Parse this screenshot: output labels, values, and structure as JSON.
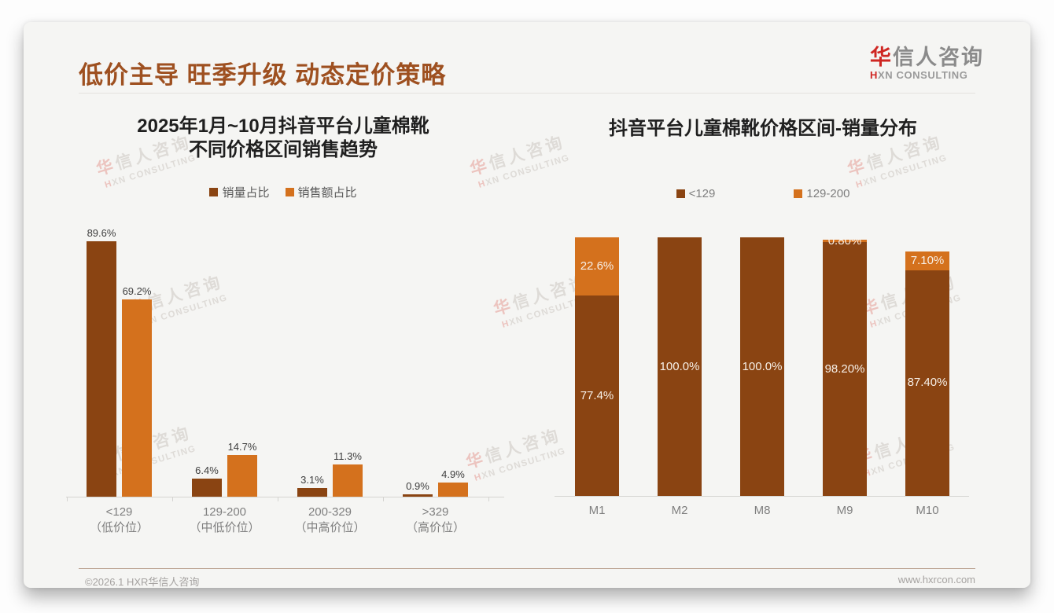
{
  "slide": {
    "title": "低价主导 旺季升级 动态定价策略",
    "logo": {
      "cn": "华信人咨询",
      "en": "HXN CONSULTING"
    },
    "footer": {
      "copyright": "©2026.1 HXR华信人咨询",
      "website": "www.hxrcon.com"
    },
    "watermark": {
      "line1": "华信人咨询",
      "line2": "HXN CONSULTING"
    }
  },
  "colors": {
    "series_brown": "#8a4412",
    "series_orange": "#d4711d",
    "title_brown": "#9e5020",
    "logo_red": "#cf2723",
    "watermark_pink": "#ecc4bf",
    "watermark_gray": "#dedbd7",
    "inside_label": "#f7f0e8",
    "outside_label": "#3d3d3d"
  },
  "chart_data": [
    {
      "type": "bar",
      "variant": "grouped",
      "title": "2025年1月~10月抖音平台儿童棉靴 不同价格区间销售趋势",
      "title_lines": [
        "2025年1月~10月抖音平台儿童棉靴",
        "不同价格区间销售趋势"
      ],
      "categories": [
        "<129（低价位）",
        "129-200（中低价位）",
        "200-329（中高价位）",
        ">329（高价位）"
      ],
      "category_lines": [
        [
          "<129",
          "（低价位）"
        ],
        [
          "129-200",
          "（中低价位）"
        ],
        [
          "200-329",
          "（中高价位）"
        ],
        [
          ">329",
          "（高价位）"
        ]
      ],
      "series": [
        {
          "name": "销量占比",
          "color": "series_brown",
          "values": [
            89.6,
            6.4,
            3.1,
            0.9
          ],
          "labels": [
            "89.6%",
            "6.4%",
            "3.1%",
            "0.9%"
          ]
        },
        {
          "name": "销售额占比",
          "color": "series_orange",
          "values": [
            69.2,
            14.7,
            11.3,
            4.9
          ],
          "labels": [
            "69.2%",
            "14.7%",
            "11.3%",
            "4.9%"
          ]
        }
      ],
      "xlabel": "",
      "ylabel": "",
      "ylim": [
        0,
        100
      ],
      "unit": "%",
      "grid": false,
      "legend_position": "top"
    },
    {
      "type": "bar",
      "variant": "stacked",
      "title": "抖音平台儿童棉靴价格区间-销量分布",
      "categories": [
        "M1",
        "M2",
        "M8",
        "M9",
        "M10"
      ],
      "series": [
        {
          "name": "<129",
          "color": "series_brown",
          "values": [
            77.4,
            100.0,
            100.0,
            98.2,
            87.4
          ],
          "labels": [
            "77.4%",
            "100.0%",
            "100.0%",
            "98.20%",
            "87.40%"
          ]
        },
        {
          "name": "129-200",
          "color": "series_orange",
          "values": [
            22.6,
            0,
            0,
            0.8,
            7.1
          ],
          "labels": [
            "22.6%",
            "",
            "",
            "0.80%",
            "7.10%"
          ]
        }
      ],
      "xlabel": "",
      "ylabel": "",
      "ylim": [
        0,
        100
      ],
      "unit": "%",
      "grid": false,
      "legend_position": "top"
    }
  ]
}
